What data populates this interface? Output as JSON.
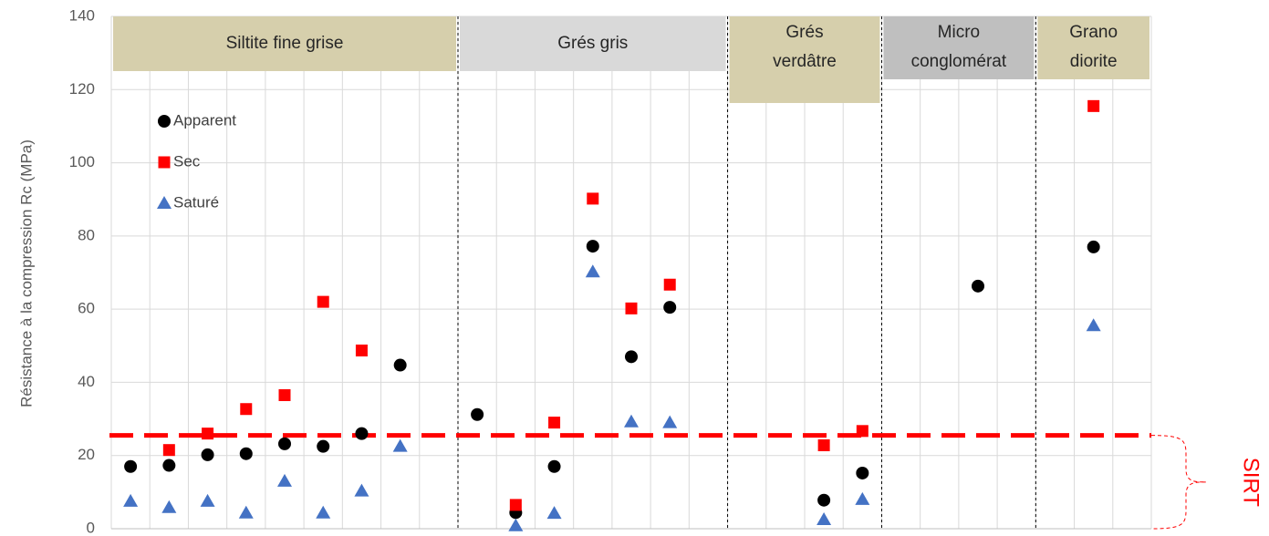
{
  "chart_data": {
    "type": "scatter",
    "y_label": "Résistance à la compression Rc (MPa)",
    "ylim": [
      0,
      140
    ],
    "yticks": [
      0,
      20,
      40,
      60,
      80,
      100,
      120,
      140
    ],
    "grid": true,
    "categories": [
      null,
      null,
      null,
      null,
      null,
      null,
      null,
      null,
      null,
      null,
      null,
      null,
      null,
      null,
      null,
      null,
      null,
      null,
      null,
      null,
      null,
      null,
      null,
      null,
      null,
      null,
      null
    ],
    "groups": [
      {
        "label": [
          "Siltite fine grise"
        ],
        "span": 9,
        "color": "#d6cfac"
      },
      {
        "label": [
          "Grés gris"
        ],
        "span": 7,
        "color": "#d9d9d9"
      },
      {
        "label": [
          "Grés",
          "verdâtre"
        ],
        "span": 4,
        "color": "#d6cfac"
      },
      {
        "label": [
          "Micro",
          "conglomérat"
        ],
        "span": 4,
        "color": "#bfbfbf"
      },
      {
        "label": [
          "Grano",
          "diorite"
        ],
        "span": 3,
        "color": "#d6cfac"
      }
    ],
    "series": [
      {
        "name": "Apparent",
        "color": "#000000",
        "marker": "circle",
        "values": [
          17,
          17.3,
          20.2,
          20.5,
          23.2,
          22.5,
          26,
          44.7,
          null,
          31.2,
          4.4,
          17,
          77.2,
          47,
          60.5,
          null,
          null,
          null,
          7.8,
          15.2,
          null,
          null,
          66.3,
          null,
          null,
          77,
          null
        ]
      },
      {
        "name": "Sec",
        "color": "#ff0000",
        "marker": "square",
        "values": [
          null,
          21.5,
          26,
          32.7,
          36.5,
          62,
          48.7,
          null,
          null,
          null,
          6.5,
          29,
          90.2,
          60.2,
          66.7,
          null,
          null,
          null,
          22.8,
          26.7,
          null,
          null,
          null,
          null,
          null,
          115.5,
          null
        ]
      },
      {
        "name": "Saturé",
        "color": "#4472c4",
        "marker": "triangle",
        "values": [
          7.5,
          5.8,
          7.5,
          4.3,
          13,
          4.3,
          10.3,
          22.5,
          null,
          null,
          0.8,
          4.2,
          70.2,
          29.2,
          29,
          null,
          null,
          null,
          2.5,
          8,
          null,
          null,
          null,
          null,
          null,
          55.5,
          null
        ]
      }
    ],
    "threshold": {
      "value": 25.5,
      "label": "SIRT",
      "color": "#ff0000"
    }
  }
}
